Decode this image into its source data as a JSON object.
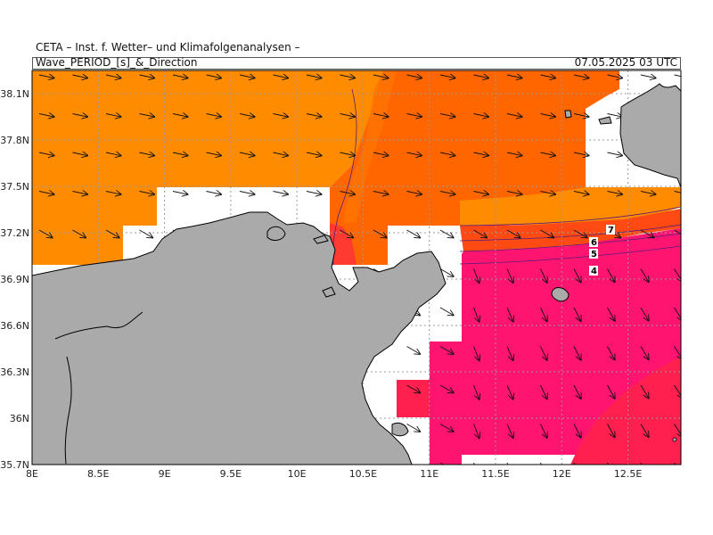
{
  "header": {
    "source": "CETA – Inst. f. Wetter– und Klimafolgenanalysen –",
    "field": "Wave_PERIOD_[s]_&_Direction",
    "valid_time": "07.05.2025 03 UTC"
  },
  "axes": {
    "lon_ticks": [
      "8E",
      "8.5E",
      "9E",
      "9.5E",
      "10E",
      "10.5E",
      "11E",
      "11.5E",
      "12E",
      "12.5E"
    ],
    "lat_ticks": [
      "38.1N",
      "37.8N",
      "37.5N",
      "37.2N",
      "36.9N",
      "36.6N",
      "36.3N",
      "36N",
      "35.7N"
    ],
    "lon_range": [
      8.0,
      12.9
    ],
    "lat_range": [
      35.7,
      38.25
    ]
  },
  "contour_labels": [
    "7",
    "6",
    "5",
    "4"
  ],
  "colors": {
    "orange": "#ff8c00",
    "dark_orange": "#ff6600",
    "red_orange": "#ff4a14",
    "magenta": "#ff1470",
    "crimson": "#ff2050",
    "land": "#aaaaaa",
    "grid": "#999999"
  }
}
